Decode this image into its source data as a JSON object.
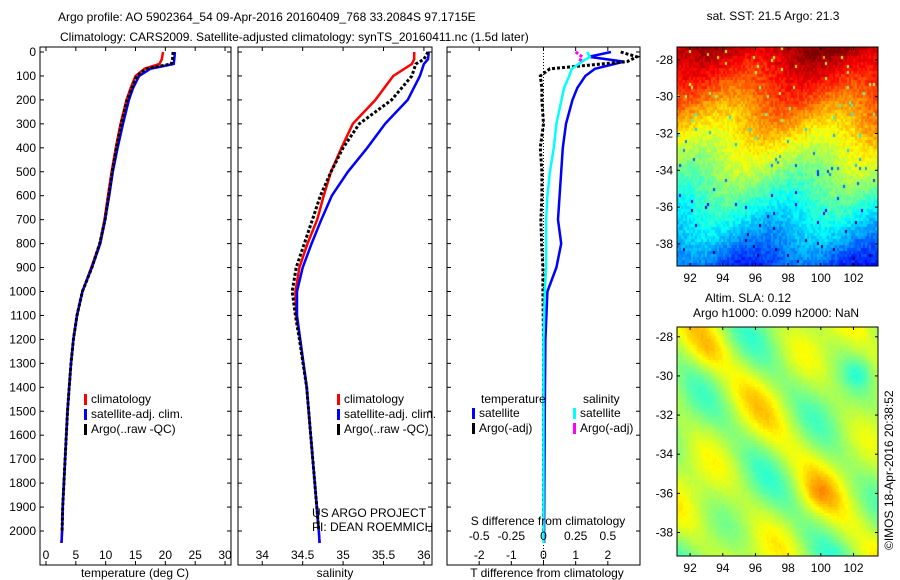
{
  "title_line1": "Argo profile: AO 5902364_54 09-Apr-2016 20160409_768 33.2084S 97.1715E",
  "title_line2": "Climatology: CARS2009. Satellite-adjusted climatology: synTS_20160411.nc (1.5d later)",
  "credits": {
    "project": "US ARGO PROJECT",
    "pi": "PI: DEAN ROEMMICH",
    "imos": "©IMOS 18-Apr-2016 20:38:52"
  },
  "colors": {
    "climatology": "#ff0000",
    "satellite": "#0000ff",
    "argo": "#000000",
    "salinity_satellite": "#00ffff",
    "salinity_argo": "#ff00ff"
  },
  "chart_data": [
    {
      "type": "line",
      "xlabel": "temperature (deg C)",
      "ylabel": "",
      "xlim": [
        -1,
        31
      ],
      "ylim": [
        2050,
        0
      ],
      "xticks": [
        "0",
        "5",
        "10",
        "15",
        "20",
        "25",
        "30"
      ],
      "yticks": [
        "0",
        "100",
        "200",
        "300",
        "400",
        "500",
        "600",
        "700",
        "800",
        "900",
        "1000",
        "1100",
        "1200",
        "1300",
        "1400",
        "1500",
        "1600",
        "1700",
        "1800",
        "1900",
        "2000"
      ],
      "legend": [
        "climatology",
        "satellite-adj. clim.",
        "Argo(..raw -QC)"
      ],
      "depth": [
        0,
        30,
        50,
        70,
        100,
        150,
        200,
        300,
        400,
        500,
        600,
        700,
        800,
        900,
        1000,
        1100,
        1200,
        1300,
        1400,
        1500,
        1600,
        1700,
        1800,
        1900,
        2000,
        2050
      ],
      "series": [
        {
          "name": "climatology",
          "values": [
            19.6,
            19.4,
            19.0,
            16.5,
            15.0,
            14.2,
            13.5,
            12.5,
            11.7,
            11.0,
            10.4,
            9.8,
            9.0,
            7.6,
            6.1,
            5.2,
            4.6,
            4.2,
            3.9,
            3.6,
            3.4,
            3.2,
            3.0,
            2.8,
            2.7,
            2.6
          ]
        },
        {
          "name": "satellite-adj. clim.",
          "values": [
            21.6,
            21.5,
            21.4,
            17.5,
            15.6,
            14.6,
            13.9,
            12.9,
            12.0,
            11.2,
            10.6,
            9.9,
            9.1,
            7.7,
            6.1,
            5.2,
            4.6,
            4.2,
            3.9,
            3.6,
            3.4,
            3.2,
            3.0,
            2.8,
            2.7,
            2.6
          ]
        },
        {
          "name": "Argo(..raw -QC)",
          "values": [
            21.3,
            21.2,
            21.0,
            16.8,
            15.2,
            14.4,
            13.6,
            12.6,
            11.8,
            11.1,
            10.5,
            9.9,
            9.0,
            7.7,
            6.1,
            5.2,
            4.6,
            4.2,
            3.9,
            3.6,
            3.4,
            3.2,
            3.0,
            2.8,
            2.7,
            null
          ]
        }
      ]
    },
    {
      "type": "line",
      "xlabel": "salinity",
      "xlim": [
        33.7,
        36.1
      ],
      "ylim": [
        2050,
        0
      ],
      "xticks": [
        "34",
        "34.5",
        "35",
        "35.5",
        "36"
      ],
      "legend": [
        "climatology",
        "satellite-adj. clim.",
        "Argo(..raw -QC)"
      ],
      "depth": [
        0,
        30,
        50,
        100,
        200,
        300,
        400,
        500,
        600,
        700,
        800,
        900,
        1000,
        1100,
        1200,
        1400,
        1600,
        1800,
        2000,
        2050
      ],
      "series": [
        {
          "name": "climatology",
          "values": [
            35.88,
            35.88,
            35.85,
            35.62,
            35.4,
            35.12,
            34.98,
            34.85,
            34.76,
            34.68,
            34.56,
            34.46,
            34.41,
            34.42,
            34.47,
            34.55,
            34.6,
            34.65,
            34.7,
            34.71
          ]
        },
        {
          "name": "satellite-adj. clim.",
          "values": [
            36.06,
            36.05,
            36.0,
            35.95,
            35.8,
            35.52,
            35.3,
            35.06,
            34.86,
            34.73,
            34.61,
            34.5,
            34.43,
            34.43,
            34.47,
            34.55,
            34.6,
            34.65,
            34.7,
            34.71
          ]
        },
        {
          "name": "Argo(..raw -QC)",
          "values": [
            36.05,
            36.0,
            35.9,
            35.85,
            35.6,
            35.2,
            35.0,
            34.85,
            34.72,
            34.62,
            34.52,
            34.42,
            34.37,
            34.41,
            34.46,
            34.55,
            34.6,
            34.65,
            34.7,
            null
          ]
        }
      ]
    },
    {
      "type": "line",
      "xlabel": "T difference from climatology",
      "x2label": "S difference from climatology",
      "xlim": [
        -3,
        3
      ],
      "x2lim": [
        -0.75,
        0.75
      ],
      "ylim": [
        2050,
        0
      ],
      "xticks": [
        "-2",
        "-1",
        "0",
        "1",
        "2"
      ],
      "x2ticks": [
        "-0.5",
        "-0.25",
        "0",
        "0.25",
        "0.5"
      ],
      "legend_temperature_title": "temperature",
      "legend_salinity_title": "salinity",
      "legend": [
        "satellite",
        "Argo(-adj)",
        "satellite",
        "Argo(-adj)"
      ],
      "depth": [
        0,
        20,
        40,
        70,
        100,
        150,
        200,
        300,
        400,
        500,
        600,
        700,
        800,
        900,
        1000,
        1200,
        1500,
        2000,
        2050
      ],
      "series": [
        {
          "name": "T satellite",
          "axis": "T",
          "values": [
            2.1,
            1.4,
            2.5,
            1.6,
            1.3,
            1.05,
            0.9,
            0.7,
            0.6,
            0.55,
            0.5,
            0.45,
            0.55,
            0.4,
            0.12,
            0.06,
            0.04,
            0.02,
            0.02
          ]
        },
        {
          "name": "T Argo(-adj)",
          "axis": "T",
          "values": [
            2.4,
            2.9,
            2.6,
            0.2,
            -0.1,
            -0.05,
            -0.05,
            0.0,
            -0.1,
            -0.05,
            -0.05,
            -0.08,
            -0.06,
            -0.02,
            -0.02,
            0.0,
            0.0,
            0.0,
            null
          ]
        },
        {
          "name": "S satellite",
          "axis": "S",
          "values": [
            0.34,
            0.36,
            0.3,
            0.22,
            0.2,
            0.16,
            0.14,
            0.1,
            0.08,
            0.05,
            0.03,
            0.02,
            0.02,
            0.02,
            0.01,
            0.0,
            0.0,
            0.0,
            0.0
          ]
        },
        {
          "name": "S Argo(-adj)",
          "axis": "S",
          "values": [
            0.25,
            0.3,
            0.28,
            null,
            null,
            null,
            null,
            null,
            null,
            null,
            null,
            null,
            null,
            null,
            null,
            null,
            null,
            null,
            null
          ]
        }
      ]
    },
    {
      "type": "heatmap",
      "title": "sat. SST: 21.5 Argo: 21.3",
      "xticks": [
        "92",
        "94",
        "96",
        "98",
        "100",
        "102"
      ],
      "yticks": [
        "-28",
        "-30",
        "-32",
        "-34",
        "-36",
        "-38"
      ],
      "xlim": [
        91.2,
        103.5
      ],
      "ylim": [
        -39.2,
        -27.3
      ]
    },
    {
      "type": "heatmap",
      "title_line1": "Altim. SLA: 0.12",
      "title_line2": "Argo h1000: 0.099 h2000: NaN",
      "xticks": [
        "92",
        "94",
        "96",
        "98",
        "100",
        "102"
      ],
      "yticks": [
        "-28",
        "-30",
        "-32",
        "-34",
        "-36",
        "-38"
      ],
      "xlim": [
        91.2,
        103.5
      ],
      "ylim": [
        -39.2,
        -27.5
      ]
    }
  ]
}
